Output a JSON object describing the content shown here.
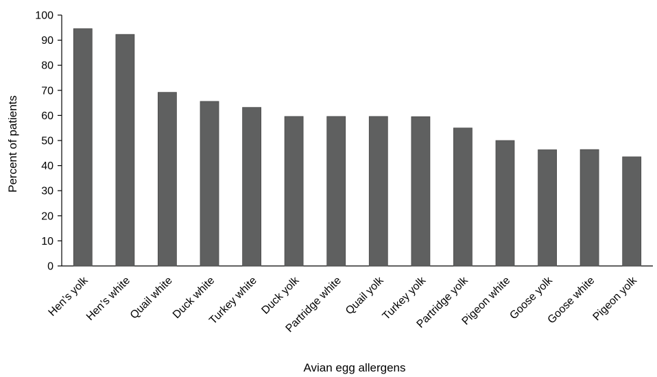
{
  "chart_data": {
    "type": "bar",
    "title": "",
    "xlabel": "Avian egg allergens",
    "ylabel": "Percent of patients",
    "ylim": [
      0,
      100
    ],
    "yticks": [
      0,
      10,
      20,
      30,
      40,
      50,
      60,
      70,
      80,
      90,
      100
    ],
    "grid": false,
    "legend": "none",
    "bar_color": "#5f6060",
    "categories": [
      "Hen’s yolk",
      "Hen’s white",
      "Quail white",
      "Duck white",
      "Turkey white",
      "Duck yolk",
      "Partridge white",
      "Quail yolk",
      "Turkey yolk",
      "Partridge yolk",
      "Pigeon white",
      "Goose yolk",
      "Goose white",
      "Pigeon yolk"
    ],
    "values": [
      94.6,
      92.3,
      69.2,
      65.6,
      63.2,
      59.6,
      59.6,
      59.6,
      59.5,
      55.0,
      50.0,
      46.3,
      46.4,
      43.5
    ]
  }
}
